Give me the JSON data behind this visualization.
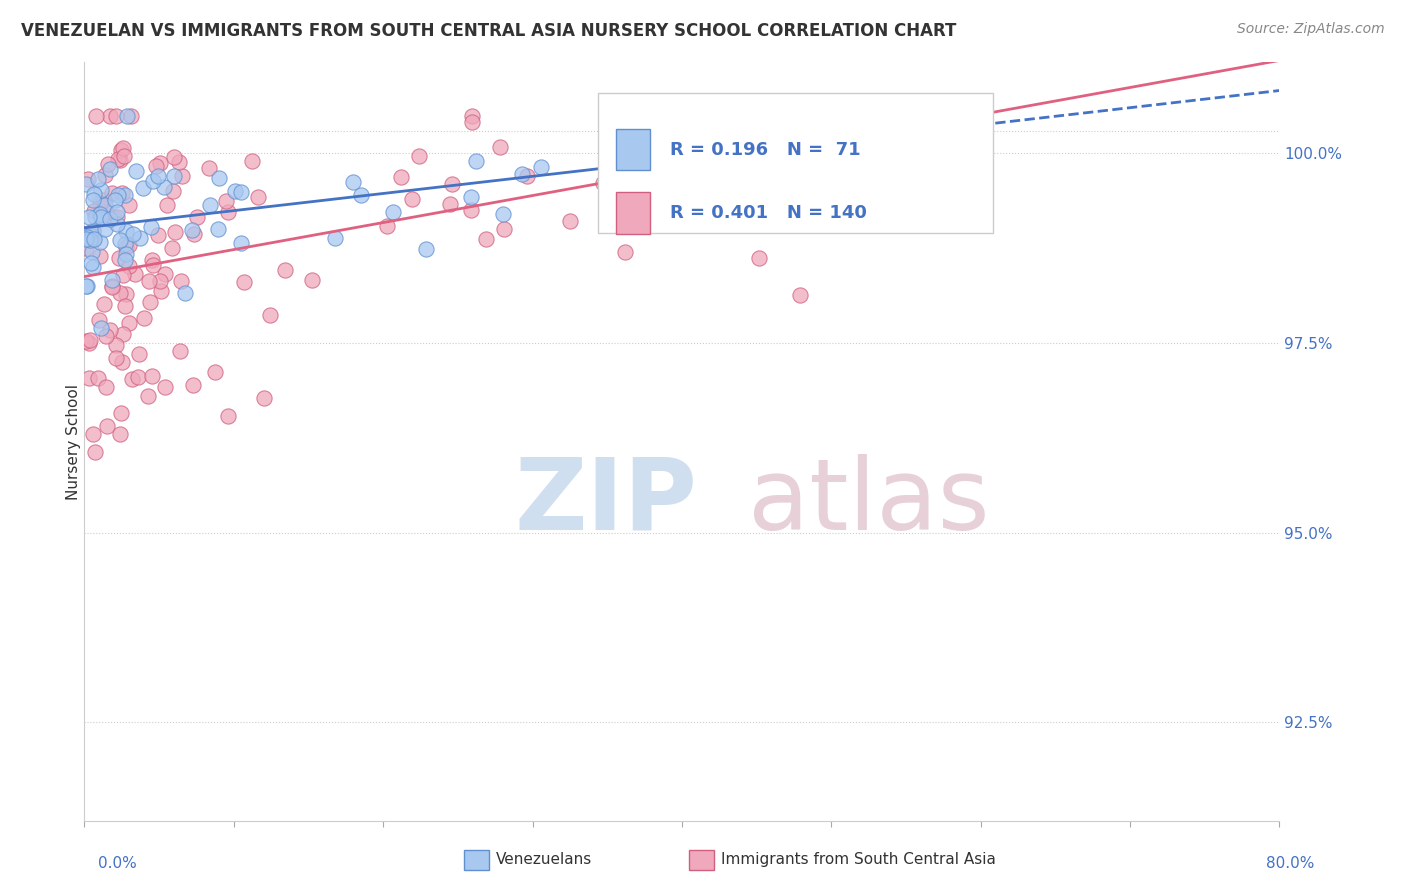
{
  "title": "VENEZUELAN VS IMMIGRANTS FROM SOUTH CENTRAL ASIA NURSERY SCHOOL CORRELATION CHART",
  "source": "Source: ZipAtlas.com",
  "ylabel": "Nursery School",
  "yticks": [
    92.5,
    95.0,
    97.5,
    100.0
  ],
  "ytick_labels": [
    "92.5%",
    "95.0%",
    "97.5%",
    "100.0%"
  ],
  "xmin": 0.0,
  "xmax": 80.0,
  "ymin": 91.2,
  "ymax": 101.2,
  "blue_R": 0.196,
  "blue_N": 71,
  "pink_R": 0.401,
  "pink_N": 140,
  "blue_color": "#a8c8f0",
  "pink_color": "#f0a8bc",
  "blue_edge_color": "#6090d0",
  "pink_edge_color": "#d06080",
  "blue_line_color": "#4472c4",
  "pink_line_color": "#e06080",
  "legend_label_blue": "Venezuelans",
  "legend_label_pink": "Immigrants from South Central Asia",
  "watermark_zip_color": "#d0dff0",
  "watermark_atlas_color": "#e8d0d8"
}
